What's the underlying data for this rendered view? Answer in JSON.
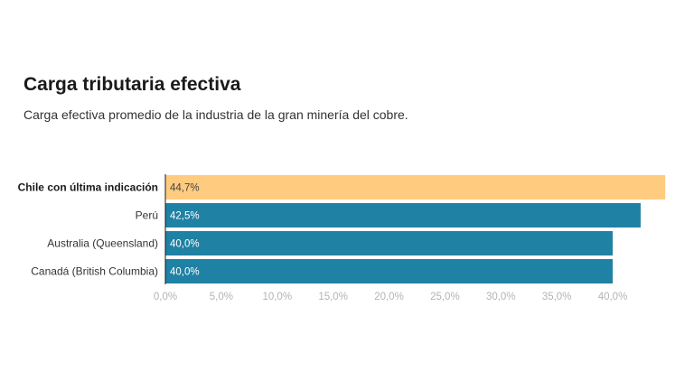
{
  "title": "Carga tributaria efectiva",
  "subtitle": "Carga efectiva promedio de la industria de la gran minería del cobre.",
  "chart_data": {
    "type": "bar",
    "orientation": "horizontal",
    "categories": [
      "Chile con última indicación",
      "Perú",
      "Australia (Queensland)",
      "Canadá (British Columbia)"
    ],
    "values": [
      44.7,
      42.5,
      40.0,
      40.0
    ],
    "value_labels": [
      "44,7%",
      "42,5%",
      "40,0%",
      "40,0%"
    ],
    "highlight": [
      true,
      false,
      false,
      false
    ],
    "colors": {
      "highlight": "#ffcb7f",
      "default": "#1f81a3",
      "highlight_text": "#444444",
      "default_text": "#ffffff"
    },
    "xlim": [
      0,
      45
    ],
    "x_ticks": [
      0,
      5,
      10,
      15,
      20,
      25,
      30,
      35,
      40
    ],
    "x_tick_labels": [
      "0,0%",
      "5,0%",
      "10,0%",
      "15,0%",
      "20,0%",
      "25,0%",
      "30,0%",
      "35,0%",
      "40,0%"
    ],
    "grid": false
  }
}
